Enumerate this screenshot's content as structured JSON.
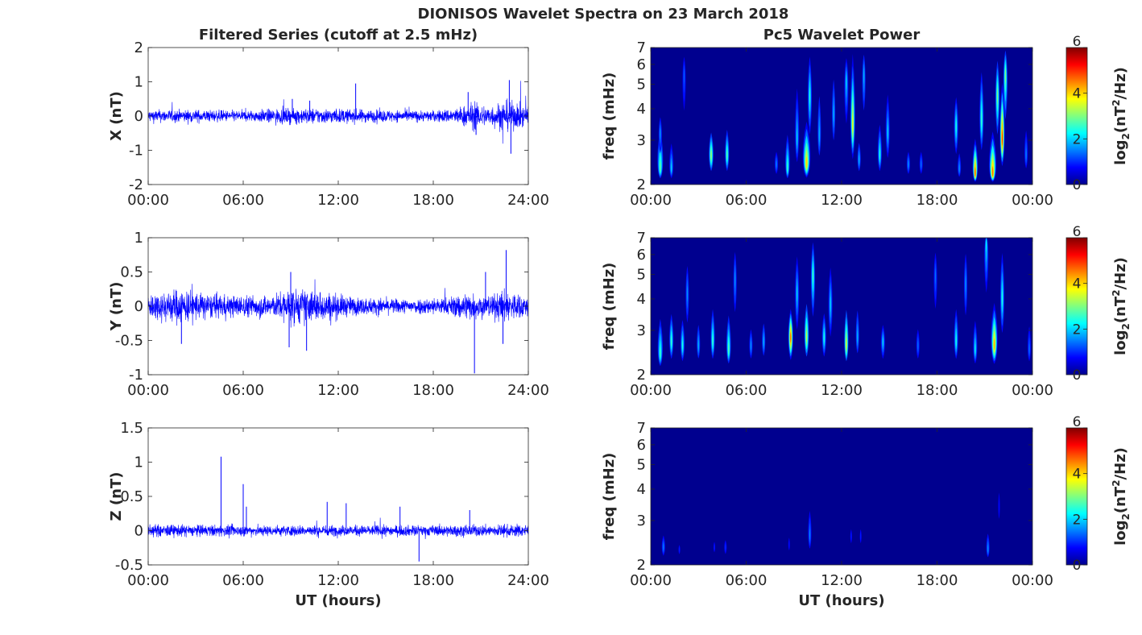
{
  "figure": {
    "title": "DIONISOS Wavelet Spectra on 23 March 2018",
    "left_column_title": "Filtered Series (cutoff at 2.5 mHz)",
    "right_column_title": "Pc5 Wavelet Power"
  },
  "colors": {
    "trace": "#0000ff",
    "axes": "#262626",
    "spectrum_background": "#00008f",
    "colormap": [
      "#00008f",
      "#0000ff",
      "#0080ff",
      "#00ffff",
      "#80ff80",
      "#ffff00",
      "#ff8000",
      "#ff0000",
      "#800000"
    ]
  },
  "chart_data": [
    {
      "type": "line",
      "ylabel": "X (nT)",
      "xlabel": "",
      "xlim": [
        0,
        24
      ],
      "ylim": [
        -2,
        2
      ],
      "x_ticks": [
        "00:00",
        "06:00",
        "12:00",
        "18:00",
        "24:00"
      ],
      "y_ticks": [
        "-2",
        "-1",
        "0",
        "1",
        "2"
      ],
      "noise_profile": [
        [
          0,
          0.14
        ],
        [
          3,
          0.14
        ],
        [
          6,
          0.12
        ],
        [
          8,
          0.16
        ],
        [
          10,
          0.18
        ],
        [
          12,
          0.16
        ],
        [
          14,
          0.14
        ],
        [
          16,
          0.13
        ],
        [
          18,
          0.12
        ],
        [
          19.5,
          0.18
        ],
        [
          20.5,
          0.3
        ],
        [
          21.5,
          0.22
        ],
        [
          22.5,
          0.35
        ],
        [
          24,
          0.22
        ]
      ],
      "spikes": [
        [
          13.1,
          0.95
        ],
        [
          20.2,
          0.7
        ],
        [
          22.8,
          1.05
        ],
        [
          22.9,
          -1.1
        ],
        [
          20.7,
          -0.55
        ],
        [
          9.1,
          0.5
        ],
        [
          10.2,
          0.45
        ]
      ]
    },
    {
      "type": "line",
      "ylabel": "Y (nT)",
      "xlabel": "",
      "xlim": [
        0,
        24
      ],
      "ylim": [
        -1,
        1
      ],
      "x_ticks": [
        "00:00",
        "06:00",
        "12:00",
        "18:00",
        "24:00"
      ],
      "y_ticks": [
        "-1",
        "-0.5",
        "0",
        "0.5",
        "1"
      ],
      "noise_profile": [
        [
          0,
          0.14
        ],
        [
          2,
          0.2
        ],
        [
          4,
          0.13
        ],
        [
          6,
          0.12
        ],
        [
          8,
          0.13
        ],
        [
          9,
          0.2
        ],
        [
          11,
          0.17
        ],
        [
          13,
          0.1
        ],
        [
          16,
          0.08
        ],
        [
          19,
          0.1
        ],
        [
          20,
          0.16
        ],
        [
          21.5,
          0.12
        ],
        [
          22.5,
          0.18
        ],
        [
          24,
          0.12
        ]
      ],
      "spikes": [
        [
          22.6,
          0.82
        ],
        [
          20.6,
          -0.98
        ],
        [
          9.0,
          0.5
        ],
        [
          10.0,
          -0.65
        ],
        [
          8.9,
          -0.6
        ],
        [
          2.1,
          -0.55
        ],
        [
          21.3,
          0.5
        ],
        [
          22.4,
          -0.55
        ]
      ]
    },
    {
      "type": "line",
      "ylabel": "Z (nT)",
      "xlabel": "UT (hours)",
      "xlim": [
        0,
        24
      ],
      "ylim": [
        -0.5,
        1.5
      ],
      "x_ticks": [
        "00:00",
        "06:00",
        "12:00",
        "18:00",
        "24:00"
      ],
      "y_ticks": [
        "-0.5",
        "0",
        "0.5",
        "1",
        "1.5"
      ],
      "noise_profile": [
        [
          0,
          0.07
        ],
        [
          6,
          0.06
        ],
        [
          12,
          0.06
        ],
        [
          18,
          0.06
        ],
        [
          24,
          0.07
        ]
      ],
      "spikes": [
        [
          4.6,
          1.08
        ],
        [
          6.0,
          0.68
        ],
        [
          6.2,
          0.35
        ],
        [
          11.3,
          0.42
        ],
        [
          12.5,
          0.4
        ],
        [
          15.9,
          0.35
        ],
        [
          17.1,
          -0.45
        ],
        [
          20.3,
          0.3
        ]
      ]
    },
    {
      "type": "heatmap",
      "ylabel": "freq (mHz)",
      "xlabel": "",
      "xlim": [
        0,
        24
      ],
      "ylim": [
        2,
        7
      ],
      "y_scale": "log",
      "x_ticks": [
        "00:00",
        "06:00",
        "12:00",
        "18:00",
        "00:00"
      ],
      "y_ticks": [
        "2",
        "3",
        "4",
        "5",
        "6",
        "7"
      ],
      "colorbar": {
        "label": "log",
        "label_sub": "2",
        "label_rest": "(nT",
        "label_sup": "2",
        "label_end": "/Hz)",
        "range": [
          0,
          6
        ],
        "ticks": [
          "0",
          "2",
          "4",
          "6"
        ]
      },
      "blobs": [
        [
          0.6,
          2.3,
          0.28,
          3.5,
          2.8
        ],
        [
          0.6,
          3.2,
          0.18,
          3.9,
          1.6
        ],
        [
          1.3,
          2.3,
          0.16,
          3.0,
          2.0
        ],
        [
          2.1,
          5.5,
          0.06,
          6.8,
          1.3
        ],
        [
          3.8,
          2.6,
          0.22,
          3.3,
          3.2
        ],
        [
          4.8,
          2.6,
          0.18,
          3.4,
          2.8
        ],
        [
          7.9,
          2.4,
          0.08,
          2.8,
          1.5
        ],
        [
          8.6,
          2.3,
          0.22,
          3.3,
          2.6
        ],
        [
          9.2,
          3.0,
          0.2,
          5.2,
          2.0
        ],
        [
          9.8,
          2.4,
          0.32,
          3.5,
          4.0
        ],
        [
          10.0,
          4.5,
          0.12,
          6.8,
          2.4
        ],
        [
          10.6,
          3.1,
          0.15,
          5.3,
          1.8
        ],
        [
          11.5,
          3.8,
          0.12,
          6.0,
          1.8
        ],
        [
          12.3,
          5.2,
          0.14,
          6.5,
          2.0
        ],
        [
          12.7,
          3.4,
          0.09,
          6.5,
          3.8
        ],
        [
          13.1,
          2.5,
          0.1,
          3.1,
          1.8
        ],
        [
          13.4,
          5.5,
          0.06,
          7.0,
          1.8
        ],
        [
          14.4,
          2.6,
          0.18,
          3.6,
          2.4
        ],
        [
          14.9,
          3.2,
          0.12,
          4.8,
          2.0
        ],
        [
          16.2,
          2.4,
          0.1,
          2.8,
          1.6
        ],
        [
          17.0,
          2.4,
          0.1,
          2.8,
          1.4
        ],
        [
          19.2,
          3.4,
          0.14,
          4.6,
          2.4
        ],
        [
          19.4,
          2.3,
          0.12,
          2.8,
          1.6
        ],
        [
          20.4,
          2.2,
          0.22,
          3.0,
          4.8
        ],
        [
          20.8,
          3.6,
          0.14,
          6.0,
          2.6
        ],
        [
          21.5,
          2.2,
          0.3,
          3.2,
          4.6
        ],
        [
          21.8,
          4.5,
          0.1,
          6.5,
          3.0
        ],
        [
          22.1,
          3.0,
          0.1,
          5.0,
          5.0
        ],
        [
          22.3,
          5.5,
          0.08,
          7.0,
          3.0
        ],
        [
          23.6,
          2.6,
          0.08,
          3.6,
          1.5
        ]
      ]
    },
    {
      "type": "heatmap",
      "ylabel": "freq (mHz)",
      "xlabel": "",
      "xlim": [
        0,
        24
      ],
      "ylim": [
        2,
        7
      ],
      "y_scale": "log",
      "x_ticks": [
        "00:00",
        "06:00",
        "12:00",
        "18:00",
        "00:00"
      ],
      "y_ticks": [
        "2",
        "3",
        "4",
        "5",
        "6",
        "7"
      ],
      "colorbar": {
        "label": "log",
        "label_sub": "2",
        "label_rest": "(nT",
        "label_sup": "2",
        "label_end": "/Hz)",
        "range": [
          0,
          6
        ],
        "ticks": [
          "0",
          "2",
          "4",
          "6"
        ]
      },
      "blobs": [
        [
          0.6,
          2.4,
          0.25,
          3.5,
          2.6
        ],
        [
          1.3,
          2.7,
          0.18,
          3.6,
          2.6
        ],
        [
          2.0,
          2.6,
          0.15,
          3.4,
          2.4
        ],
        [
          2.3,
          4.2,
          0.08,
          6.0,
          1.6
        ],
        [
          3.0,
          2.6,
          0.12,
          3.4,
          1.8
        ],
        [
          3.9,
          2.7,
          0.18,
          3.8,
          2.6
        ],
        [
          4.9,
          2.5,
          0.22,
          3.6,
          2.8
        ],
        [
          5.3,
          4.8,
          0.08,
          6.8,
          1.6
        ],
        [
          6.3,
          2.6,
          0.1,
          3.2,
          1.6
        ],
        [
          7.1,
          2.7,
          0.1,
          3.4,
          1.8
        ],
        [
          8.8,
          2.8,
          0.2,
          3.6,
          4.8
        ],
        [
          9.2,
          4.2,
          0.1,
          6.2,
          2.0
        ],
        [
          9.8,
          2.8,
          0.22,
          4.0,
          3.4
        ],
        [
          10.2,
          5.0,
          0.14,
          7.0,
          2.6
        ],
        [
          10.9,
          2.8,
          0.14,
          3.6,
          2.4
        ],
        [
          11.3,
          3.8,
          0.1,
          5.6,
          2.0
        ],
        [
          12.3,
          2.6,
          0.16,
          3.8,
          3.6
        ],
        [
          13.0,
          2.8,
          0.1,
          4.0,
          1.8
        ],
        [
          14.6,
          2.7,
          0.14,
          3.2,
          2.0
        ],
        [
          16.8,
          2.6,
          0.08,
          3.2,
          1.4
        ],
        [
          17.9,
          5.0,
          0.06,
          6.6,
          1.4
        ],
        [
          19.2,
          2.7,
          0.18,
          3.8,
          2.4
        ],
        [
          19.8,
          4.6,
          0.08,
          6.8,
          1.6
        ],
        [
          20.4,
          2.5,
          0.14,
          3.4,
          2.2
        ],
        [
          21.1,
          6.8,
          0.07,
          7.0,
          2.2
        ],
        [
          21.6,
          2.6,
          0.28,
          3.8,
          4.2
        ],
        [
          22.1,
          4.0,
          0.1,
          6.5,
          2.4
        ],
        [
          23.8,
          2.5,
          0.06,
          3.4,
          1.4
        ]
      ]
    },
    {
      "type": "heatmap",
      "ylabel": "freq (mHz)",
      "xlabel": "UT (hours)",
      "xlim": [
        0,
        24
      ],
      "ylim": [
        2,
        7
      ],
      "y_scale": "log",
      "x_ticks": [
        "00:00",
        "06:00",
        "12:00",
        "18:00",
        "00:00"
      ],
      "y_ticks": [
        "2",
        "3",
        "4",
        "5",
        "6",
        "7"
      ],
      "colorbar": {
        "label": "log",
        "label_sub": "2",
        "label_rest": "(nT",
        "label_sup": "2",
        "label_end": "/Hz)",
        "range": [
          0,
          6
        ],
        "ticks": [
          "0",
          "2",
          "4",
          "6"
        ]
      },
      "blobs": [
        [
          0.8,
          2.35,
          0.14,
          2.7,
          1.5
        ],
        [
          1.8,
          2.3,
          0.1,
          2.5,
          0.9
        ],
        [
          4.0,
          2.35,
          0.1,
          2.6,
          0.9
        ],
        [
          4.7,
          2.35,
          0.1,
          2.6,
          1.0
        ],
        [
          8.7,
          2.4,
          0.07,
          2.8,
          0.8
        ],
        [
          10.0,
          2.6,
          0.1,
          3.6,
          1.5
        ],
        [
          12.6,
          2.6,
          0.08,
          3.0,
          0.9
        ],
        [
          13.2,
          2.6,
          0.08,
          3.0,
          0.9
        ],
        [
          21.2,
          2.3,
          0.12,
          2.8,
          1.6
        ],
        [
          21.9,
          3.4,
          0.06,
          4.8,
          0.8
        ]
      ]
    }
  ]
}
